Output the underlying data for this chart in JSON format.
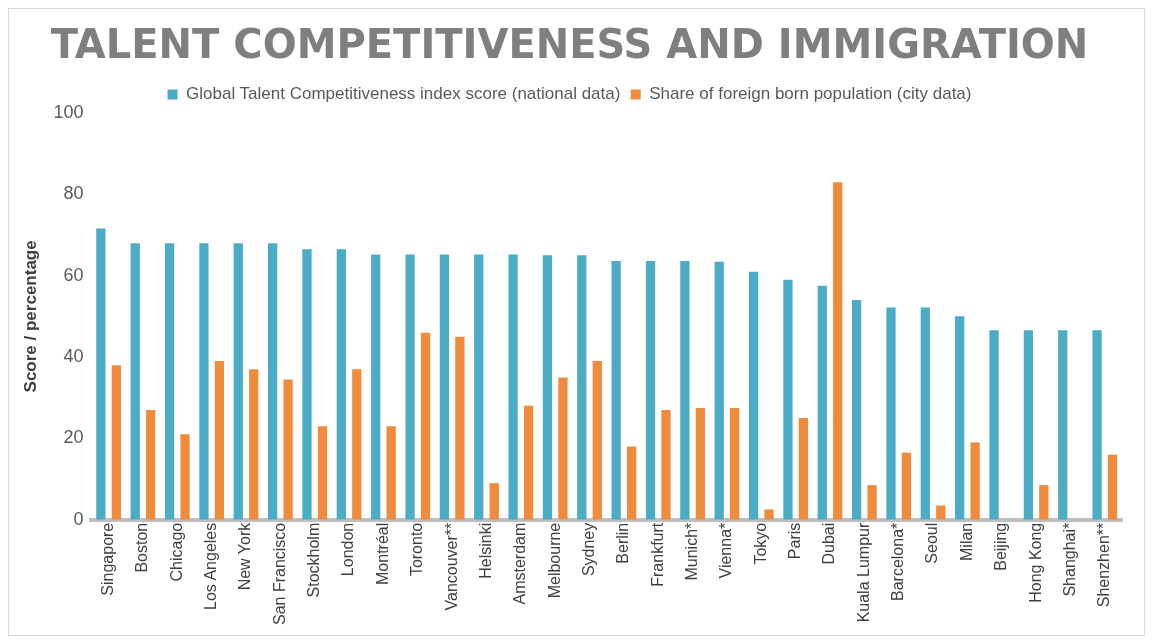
{
  "chart_data": {
    "type": "bar",
    "title": "TALENT COMPETITIVENESS AND IMMIGRATION",
    "ylabel": "Score / percentage",
    "categories": [
      "Singapore",
      "Boston",
      "Chicago",
      "Los Angeles",
      "New York",
      "San Francisco",
      "Stockholm",
      "London",
      "Montréal",
      "Toronto",
      "Vancouver**",
      "Helsinki",
      "Amsterdam",
      "Melbourne",
      "Sydney",
      "Berlin",
      "Frankfurt",
      "Munich*",
      "Vienna*",
      "Tokyo",
      "Paris",
      "Dubai",
      "Kuala Lumpur",
      "Barcelona*",
      "Seoul",
      "Milan",
      "Beijing",
      "Hong Kong",
      "Shanghai*",
      "Shenzhen**"
    ],
    "series": [
      {
        "name": "Global Talent Competitiveness index score (national data)",
        "color": "#4bacc6",
        "values": [
          71.6,
          68,
          68,
          68,
          68,
          68,
          66.5,
          66.5,
          65.2,
          65.2,
          65.2,
          65.2,
          65.2,
          65,
          65,
          63.6,
          63.6,
          63.6,
          63.4,
          61,
          59,
          57.5,
          54,
          52.2,
          52.2,
          50,
          46.6,
          46.6,
          46.6,
          46.6
        ]
      },
      {
        "name": "Share of foreign born population (city data)",
        "color": "#f08a3c",
        "values": [
          38,
          27,
          21,
          39,
          37,
          34.5,
          23,
          37,
          23,
          46,
          45,
          9,
          28,
          35,
          39,
          18,
          27,
          27.5,
          27.5,
          2.5,
          25,
          83,
          8.5,
          16.5,
          3.5,
          19,
          0,
          8.5,
          null,
          16
        ]
      }
    ],
    "ylim": [
      0,
      100
    ],
    "yticks": [
      0,
      20,
      40,
      60,
      80,
      100
    ],
    "legend": "top",
    "grid": false
  }
}
